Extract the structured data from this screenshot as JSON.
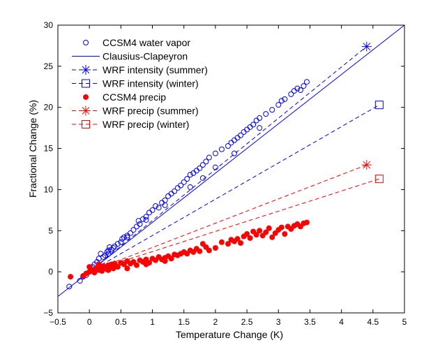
{
  "chart_data": {
    "type": "scatter",
    "title": "",
    "xlabel": "Temperature Change (K)",
    "ylabel": "Fractional Change (%)",
    "xlim": [
      -0.5,
      5
    ],
    "ylim": [
      -5,
      30
    ],
    "xticks": [
      -0.5,
      0,
      0.5,
      1,
      1.5,
      2,
      2.5,
      3,
      3.5,
      4,
      4.5,
      5
    ],
    "xtick_labels": [
      "−0.5",
      "0",
      "0.5",
      "1",
      "1.5",
      "2",
      "2.5",
      "3",
      "3.5",
      "4",
      "4.5",
      "5"
    ],
    "yticks": [
      -5,
      0,
      5,
      10,
      15,
      20,
      25,
      30
    ],
    "ytick_labels": [
      "−5",
      "0",
      "5",
      "10",
      "15",
      "20",
      "25",
      "30"
    ],
    "grid": false,
    "legend_position": "top-left",
    "colors": {
      "blue": "#0000ff",
      "red": "#ff0000",
      "axis": "#000000"
    },
    "series": [
      {
        "name": "CCSM4 water vapor",
        "kind": "scatter",
        "marker": "circle-open",
        "color": "#0000ff",
        "points": [
          [
            -0.32,
            -1.8
          ],
          [
            -0.15,
            -1.1
          ],
          [
            -0.1,
            -0.6
          ],
          [
            -0.05,
            -0.4
          ],
          [
            0.0,
            0.0
          ],
          [
            0.02,
            0.3
          ],
          [
            0.05,
            0.6
          ],
          [
            0.08,
            0.9
          ],
          [
            0.12,
            1.2
          ],
          [
            0.15,
            1.6
          ],
          [
            0.18,
            2.2
          ],
          [
            0.22,
            1.8
          ],
          [
            0.25,
            2.0
          ],
          [
            0.28,
            2.4
          ],
          [
            0.3,
            2.6
          ],
          [
            0.32,
            3.0
          ],
          [
            0.35,
            2.7
          ],
          [
            0.38,
            2.9
          ],
          [
            0.4,
            3.1
          ],
          [
            0.45,
            3.4
          ],
          [
            0.5,
            3.6
          ],
          [
            0.52,
            4.0
          ],
          [
            0.55,
            4.2
          ],
          [
            0.6,
            4.4
          ],
          [
            0.65,
            4.7
          ],
          [
            0.7,
            5.1
          ],
          [
            0.75,
            5.5
          ],
          [
            0.78,
            6.2
          ],
          [
            0.8,
            5.8
          ],
          [
            0.85,
            6.4
          ],
          [
            0.9,
            6.7
          ],
          [
            0.95,
            7.2
          ],
          [
            1.0,
            7.5
          ],
          [
            1.05,
            8.0
          ],
          [
            1.1,
            7.8
          ],
          [
            1.15,
            8.4
          ],
          [
            1.2,
            8.7
          ],
          [
            1.25,
            9.2
          ],
          [
            1.3,
            9.5
          ],
          [
            1.35,
            9.8
          ],
          [
            1.4,
            10.2
          ],
          [
            1.45,
            10.5
          ],
          [
            1.5,
            10.9
          ],
          [
            1.55,
            11.3
          ],
          [
            1.6,
            11.8
          ],
          [
            1.65,
            12.0
          ],
          [
            1.7,
            12.3
          ],
          [
            1.75,
            12.6
          ],
          [
            1.8,
            13.0
          ],
          [
            1.85,
            13.4
          ],
          [
            1.9,
            13.9
          ],
          [
            2.0,
            14.4
          ],
          [
            2.1,
            14.9
          ],
          [
            2.2,
            15.3
          ],
          [
            2.25,
            15.7
          ],
          [
            2.3,
            16.0
          ],
          [
            2.35,
            16.3
          ],
          [
            2.4,
            16.6
          ],
          [
            2.45,
            17.0
          ],
          [
            2.5,
            17.3
          ],
          [
            2.55,
            17.6
          ],
          [
            2.6,
            17.9
          ],
          [
            2.65,
            18.4
          ],
          [
            2.7,
            18.7
          ],
          [
            2.8,
            19.2
          ],
          [
            2.9,
            19.7
          ],
          [
            3.0,
            20.3
          ],
          [
            3.05,
            20.8
          ],
          [
            3.1,
            21.0
          ],
          [
            3.2,
            21.6
          ],
          [
            3.25,
            22.0
          ],
          [
            3.3,
            22.3
          ],
          [
            3.35,
            22.1
          ],
          [
            3.4,
            22.6
          ],
          [
            3.45,
            23.1
          ],
          [
            2.3,
            14.4
          ],
          [
            1.8,
            11.4
          ],
          [
            1.6,
            10.3
          ],
          [
            2.0,
            12.7
          ],
          [
            0.6,
            4.2
          ],
          [
            0.3,
            2.2
          ],
          [
            2.7,
            17.5
          ],
          [
            1.2,
            8.1
          ],
          [
            0.9,
            6.3
          ]
        ]
      },
      {
        "name": "Clausius-Clapeyron",
        "kind": "line",
        "style": "solid",
        "color": "#0000ff",
        "points": [
          [
            -0.5,
            -3.0
          ],
          [
            5.0,
            30.0
          ]
        ]
      },
      {
        "name": "WRF intensity (summer)",
        "kind": "line",
        "style": "dashed",
        "marker": "asterisk",
        "color": "#0000ff",
        "points": [
          [
            0,
            0
          ],
          [
            4.4,
            27.4
          ]
        ]
      },
      {
        "name": "WRF intensity (winter)",
        "kind": "line",
        "style": "dashed",
        "marker": "square-open",
        "color": "#0000ff",
        "points": [
          [
            0,
            0
          ],
          [
            4.6,
            20.3
          ]
        ]
      },
      {
        "name": "CCSM4 precip",
        "kind": "scatter",
        "marker": "circle-filled",
        "color": "#ff0000",
        "points": [
          [
            -0.3,
            -0.6
          ],
          [
            -0.1,
            -0.5
          ],
          [
            -0.05,
            -0.2
          ],
          [
            0.0,
            0.0
          ],
          [
            0.0,
            0.6
          ],
          [
            0.05,
            0.2
          ],
          [
            0.08,
            -0.1
          ],
          [
            0.1,
            0.3
          ],
          [
            0.12,
            0.5
          ],
          [
            0.15,
            0.2
          ],
          [
            0.18,
            0.4
          ],
          [
            0.2,
            0.1
          ],
          [
            0.22,
            0.7
          ],
          [
            0.25,
            0.5
          ],
          [
            0.28,
            0.3
          ],
          [
            0.3,
            0.8
          ],
          [
            0.32,
            0.6
          ],
          [
            0.35,
            0.9
          ],
          [
            0.38,
            0.4
          ],
          [
            0.4,
            1.0
          ],
          [
            0.42,
            0.7
          ],
          [
            0.45,
            0.6
          ],
          [
            0.5,
            1.1
          ],
          [
            0.55,
            0.9
          ],
          [
            0.6,
            1.3
          ],
          [
            0.65,
            1.0
          ],
          [
            0.7,
            1.2
          ],
          [
            0.75,
            0.8
          ],
          [
            0.8,
            1.4
          ],
          [
            0.85,
            1.2
          ],
          [
            0.9,
            1.5
          ],
          [
            0.95,
            1.1
          ],
          [
            1.0,
            1.6
          ],
          [
            1.05,
            1.4
          ],
          [
            1.1,
            1.8
          ],
          [
            1.15,
            1.5
          ],
          [
            1.2,
            1.7
          ],
          [
            1.25,
            1.9
          ],
          [
            1.3,
            1.6
          ],
          [
            1.35,
            2.1
          ],
          [
            1.4,
            2.0
          ],
          [
            1.45,
            2.2
          ],
          [
            1.5,
            2.4
          ],
          [
            1.55,
            2.2
          ],
          [
            1.6,
            2.6
          ],
          [
            1.65,
            2.4
          ],
          [
            1.7,
            2.8
          ],
          [
            1.75,
            2.5
          ],
          [
            1.8,
            3.4
          ],
          [
            1.85,
            3.0
          ],
          [
            1.9,
            2.6
          ],
          [
            2.0,
            2.9
          ],
          [
            2.1,
            3.6
          ],
          [
            2.2,
            3.4
          ],
          [
            2.25,
            3.9
          ],
          [
            2.3,
            3.7
          ],
          [
            2.35,
            4.0
          ],
          [
            2.4,
            3.5
          ],
          [
            2.45,
            4.3
          ],
          [
            2.5,
            4.6
          ],
          [
            2.55,
            4.1
          ],
          [
            2.6,
            4.9
          ],
          [
            2.65,
            4.5
          ],
          [
            2.7,
            5.0
          ],
          [
            2.75,
            4.4
          ],
          [
            2.8,
            4.8
          ],
          [
            2.85,
            5.3
          ],
          [
            2.9,
            4.2
          ],
          [
            2.95,
            4.7
          ],
          [
            3.0,
            5.1
          ],
          [
            3.05,
            5.4
          ],
          [
            3.1,
            4.6
          ],
          [
            3.15,
            5.5
          ],
          [
            3.2,
            5.2
          ],
          [
            3.25,
            5.6
          ],
          [
            3.3,
            5.8
          ],
          [
            3.35,
            5.5
          ],
          [
            3.4,
            5.9
          ],
          [
            3.45,
            6.0
          ],
          [
            0.6,
            0.4
          ],
          [
            0.9,
            0.9
          ],
          [
            1.2,
            1.3
          ],
          [
            0.3,
            0.2
          ],
          [
            0.15,
            0.9
          ]
        ]
      },
      {
        "name": "WRF precip (summer)",
        "kind": "line",
        "style": "dashed",
        "marker": "asterisk",
        "color": "#ff0000",
        "points": [
          [
            0,
            0
          ],
          [
            4.4,
            13.0
          ]
        ]
      },
      {
        "name": "WRF precip (winter)",
        "kind": "line",
        "style": "dashed",
        "marker": "square-open",
        "color": "#ff0000",
        "points": [
          [
            0,
            0
          ],
          [
            4.6,
            11.3
          ]
        ]
      }
    ]
  }
}
